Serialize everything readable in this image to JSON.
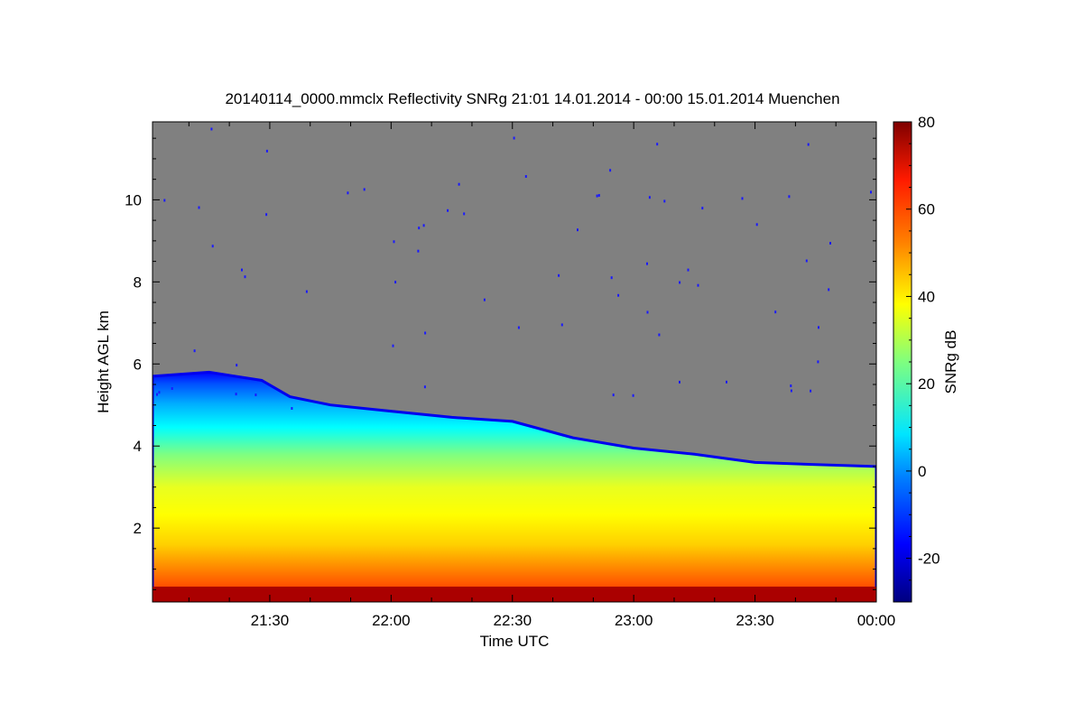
{
  "chart_data": {
    "type": "heatmap",
    "title": "20140114_0000.mmclx Reflectivity SNRg   21:01 14.01.2014 - 00:00 15.01.2014 Muenchen",
    "xlabel": "Time UTC",
    "ylabel": "Height AGL km",
    "x_range": [
      "21:01",
      "00:00"
    ],
    "ylim": [
      0.2,
      11.9
    ],
    "x_ticks": [
      "21:30",
      "22:00",
      "22:30",
      "23:00",
      "23:30",
      "00:00"
    ],
    "y_ticks": [
      "2",
      "4",
      "6",
      "8",
      "10"
    ],
    "colorbar": {
      "label": "SNRg dB",
      "range": [
        -30,
        80
      ],
      "ticks": [
        "-20",
        "0",
        "20",
        "40",
        "60",
        "80"
      ]
    },
    "background_color": "#808080",
    "grid": false,
    "echo_top_km": [
      {
        "time": "21:01",
        "top": 5.7
      },
      {
        "time": "21:15",
        "top": 5.8
      },
      {
        "time": "21:28",
        "top": 5.6
      },
      {
        "time": "21:35",
        "top": 5.2
      },
      {
        "time": "21:45",
        "top": 5.0
      },
      {
        "time": "22:00",
        "top": 4.85
      },
      {
        "time": "22:15",
        "top": 4.7
      },
      {
        "time": "22:30",
        "top": 4.6
      },
      {
        "time": "22:45",
        "top": 4.2
      },
      {
        "time": "23:00",
        "top": 3.95
      },
      {
        "time": "23:15",
        "top": 3.8
      },
      {
        "time": "23:30",
        "top": 3.6
      },
      {
        "time": "23:45",
        "top": 3.55
      },
      {
        "time": "00:00",
        "top": 3.5
      }
    ]
  }
}
